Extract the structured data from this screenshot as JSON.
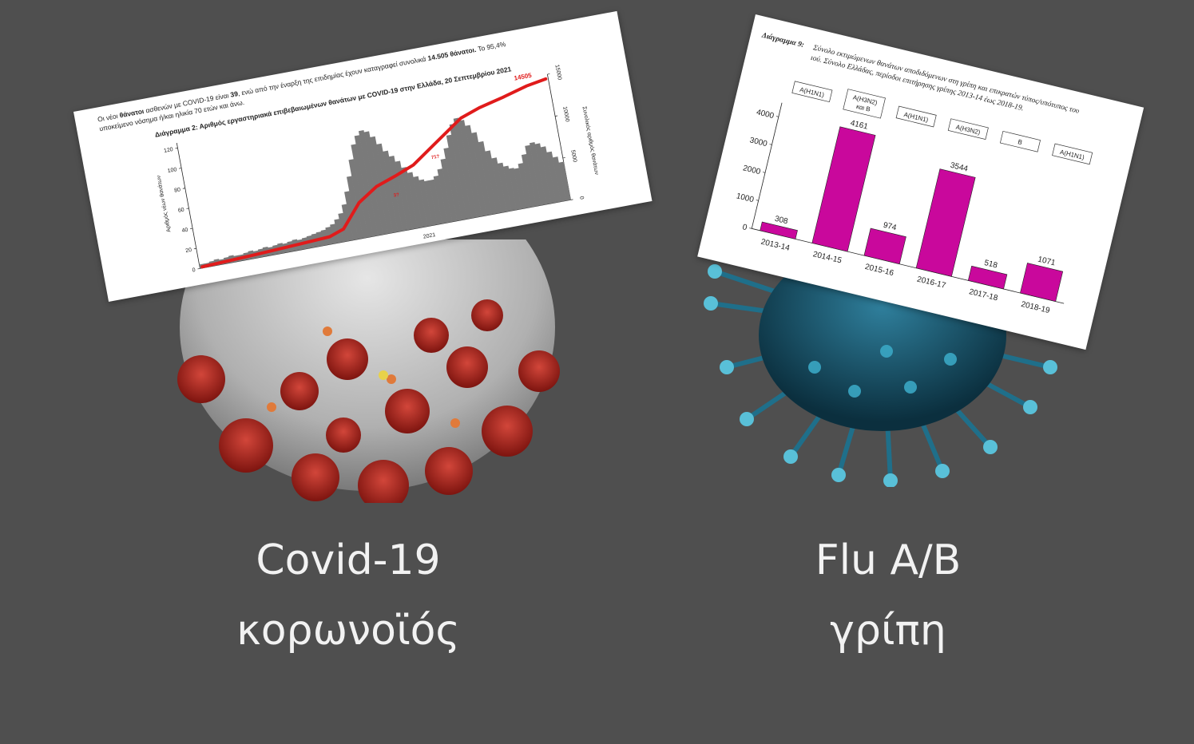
{
  "left_panel": {
    "caption_line1": "Covid-19",
    "caption_line2": "κορωνοϊός",
    "intro_line1_a": "Οι νέοι",
    "intro_line1_b": "θάνατοι",
    "intro_line1_c": "ασθενών με COVID-19 είναι",
    "intro_line1_d": "39",
    "intro_line1_e": ", ενώ από την έναρξη της επιδημίας έχουν καταγραφεί συνολικά",
    "intro_line1_f": "14.505 θάνατοι.",
    "intro_line1_g": "Το 95,4%",
    "intro_line2": "υποκείμενο νόσημα ή/και ηλικία 70 ετών και άνω.",
    "colors": {
      "bars": "#7a7a7a",
      "cumulative": "#e01b1b",
      "card": "#ffffff"
    },
    "virus_icon": "coronavirus-illustration"
  },
  "right_panel": {
    "caption_line1": "Flu A/B",
    "caption_line2": "γρίπη",
    "colors": {
      "bars": "#c9089c"
    },
    "virus_icon": "influenza-virus-illustration"
  },
  "chart_data": [
    {
      "type": "bar",
      "title": "Διάγραμμα 2: Αριθμός εργαστηριακά επιβεβαιωμένων θανάτων με COVID-19 στην Ελλάδα, 20 Σεπτεμβρίου 2021",
      "ylabel": "Αριθμός νέων θανάτων",
      "ylabel_right": "Συνολικός αριθμός θανάτων",
      "x_tick_labels": [
        "2021"
      ],
      "yticks": [
        0,
        20,
        40,
        60,
        80,
        100,
        120
      ],
      "yticks_right": [
        0,
        5000,
        10000,
        15000
      ],
      "ylim": [
        0,
        125
      ],
      "ylim_right": [
        0,
        15000
      ],
      "series": [
        {
          "name": "",
          "kind": "daily_deaths_bars",
          "values": [
            4,
            4,
            5,
            6,
            5,
            6,
            7,
            6,
            6,
            7,
            8,
            7,
            8,
            9,
            8,
            9,
            10,
            9,
            10,
            11,
            10,
            11,
            12,
            13,
            14,
            15,
            17,
            19,
            23,
            28,
            36,
            48,
            62,
            78,
            92,
            100,
            104,
            102,
            96,
            88,
            80,
            74,
            68,
            61,
            55,
            50,
            46,
            44,
            44,
            47,
            53,
            62,
            72,
            84,
            94,
            99,
            96,
            90,
            82,
            72,
            62,
            54,
            48,
            44,
            41,
            40,
            44,
            52,
            60,
            62,
            60,
            56,
            50,
            44,
            38
          ]
        },
        {
          "name": "",
          "kind": "cumulative_line",
          "x": [
            0,
            10,
            20,
            26,
            29,
            33,
            37,
            41,
            45,
            50,
            56,
            60,
            65,
            70,
            74
          ],
          "values": [
            150,
            400,
            700,
            900,
            1500,
            4200,
            5700,
            6500,
            7400,
            9400,
            11800,
            12600,
            13300,
            14100,
            14505
          ]
        }
      ],
      "annotations": [
        "14505",
        "3?",
        "71?"
      ]
    },
    {
      "type": "bar",
      "title": "Διάγραμμα 9:",
      "subtitle": "Σύνολο εκτιμώμενων θανάτων αποδιδόμενων στη γρίπη και επικρατών τύπος/υπότυπος του ιού. Σύνολο Ελλάδας, περίοδοι επιτήρησης γρίπης 2013-14 έως 2018-19.",
      "categories": [
        "2013-14",
        "2014-15",
        "2015-16",
        "2016-17",
        "2017-18",
        "2018-19"
      ],
      "values": [
        308,
        4161,
        974,
        3544,
        518,
        1071
      ],
      "data_labels": [
        "308",
        "4161",
        "974",
        "3544",
        "518",
        "1071"
      ],
      "dominant_subtypes": [
        "A(H1N1)",
        "A(H3N2)\nκαι B",
        "A(H1N1)",
        "A(H3N2)",
        "B",
        "A(H1N1)"
      ],
      "yticks": [
        0,
        1000,
        2000,
        3000,
        4000
      ],
      "ylim": [
        0,
        4500
      ],
      "xlabel": "",
      "ylabel": ""
    }
  ]
}
